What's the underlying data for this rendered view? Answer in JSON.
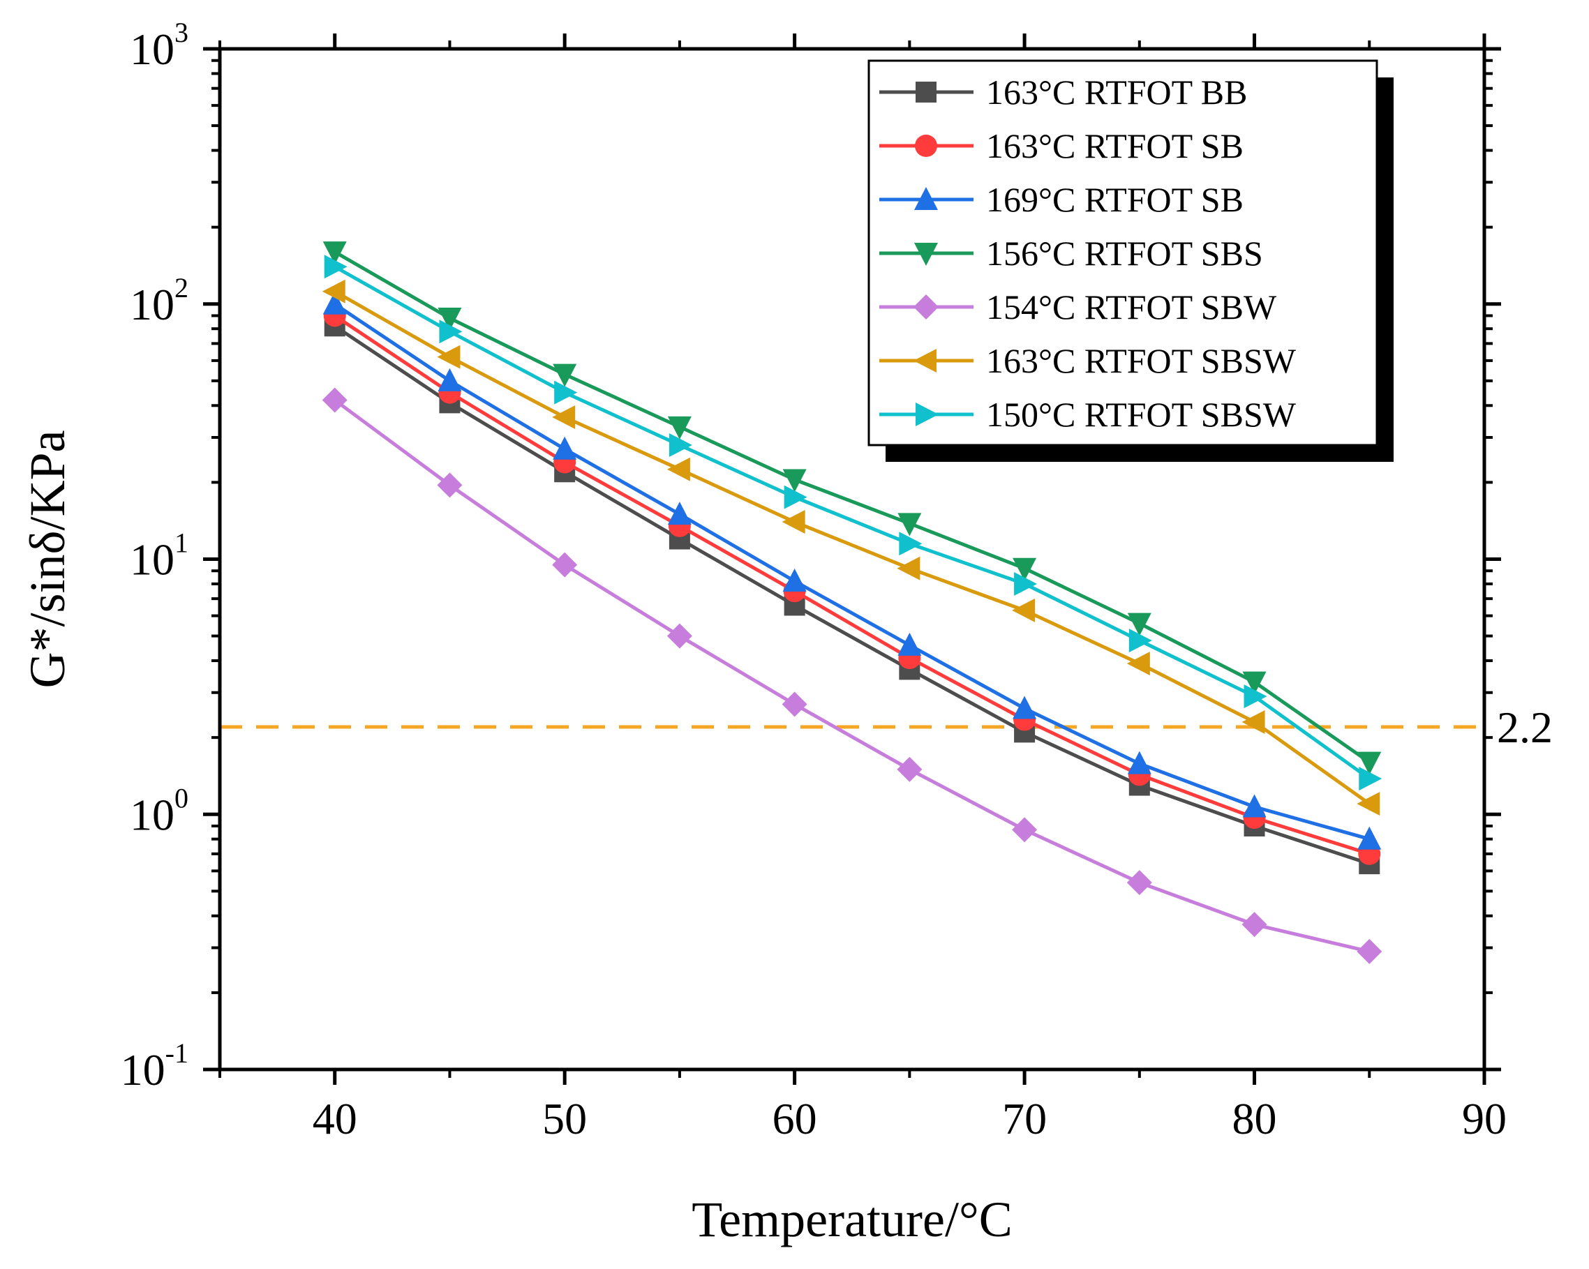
{
  "chart_data": {
    "type": "line",
    "xlabel": "Temperature/°C",
    "ylabel": "G*/sinδ/KPa",
    "yscale": "log",
    "xlim": [
      35,
      90
    ],
    "ylim": [
      0.1,
      1000
    ],
    "x_ticks": [
      {
        "value": 40,
        "label": "40"
      },
      {
        "value": 50,
        "label": "50"
      },
      {
        "value": 60,
        "label": "60"
      },
      {
        "value": 70,
        "label": "70"
      },
      {
        "value": 80,
        "label": "80"
      },
      {
        "value": 90,
        "label": "90"
      }
    ],
    "y_ticks": [
      {
        "value": 0.1,
        "base": "10",
        "exp": "-1"
      },
      {
        "value": 1,
        "base": "10",
        "exp": "0"
      },
      {
        "value": 10,
        "base": "10",
        "exp": "1"
      },
      {
        "value": 100,
        "base": "10",
        "exp": "2"
      },
      {
        "value": 1000,
        "base": "10",
        "exp": "3"
      }
    ],
    "x": [
      40,
      45,
      50,
      55,
      60,
      65,
      70,
      75,
      80,
      85
    ],
    "series": [
      {
        "name": "163°C RTFOT BB",
        "color": "#4d4d4d",
        "marker": "square",
        "values": [
          82,
          41,
          22,
          12,
          6.6,
          3.7,
          2.1,
          1.3,
          0.9,
          0.64
        ]
      },
      {
        "name": "163°C RTFOT SB",
        "color": "#ff3b3b",
        "marker": "circle",
        "values": [
          90,
          45,
          24,
          13.5,
          7.5,
          4.1,
          2.35,
          1.43,
          0.97,
          0.7
        ]
      },
      {
        "name": "169°C RTFOT SB",
        "color": "#1f6fe5",
        "marker": "triangle-up",
        "values": [
          100,
          50,
          27,
          15,
          8.2,
          4.6,
          2.6,
          1.58,
          1.07,
          0.8
        ]
      },
      {
        "name": "156°C RTFOT SBS",
        "color": "#1a9a5a",
        "marker": "triangle-down",
        "values": [
          160,
          88,
          53,
          33,
          20.5,
          13.8,
          9.2,
          5.6,
          3.3,
          1.6
        ]
      },
      {
        "name": "154°C RTFOT SBW",
        "color": "#c77ddb",
        "marker": "diamond",
        "values": [
          42,
          19.5,
          9.5,
          5.0,
          2.7,
          1.5,
          0.87,
          0.54,
          0.37,
          0.29
        ]
      },
      {
        "name": "163°C RTFOT SBSW",
        "color": "#d99a0e",
        "marker": "triangle-left",
        "values": [
          112,
          62,
          36,
          22.5,
          14,
          9.2,
          6.3,
          3.9,
          2.3,
          1.1
        ]
      },
      {
        "name": "150°C RTFOT SBSW",
        "color": "#10c0cc",
        "marker": "triangle-right",
        "values": [
          140,
          78,
          45,
          28,
          17.5,
          11.5,
          8.0,
          4.8,
          2.9,
          1.38
        ]
      }
    ],
    "threshold": {
      "value": 2.2,
      "label": "2.2",
      "color": "#f5a623",
      "style": "dashed"
    },
    "legend_position": "top-right"
  }
}
